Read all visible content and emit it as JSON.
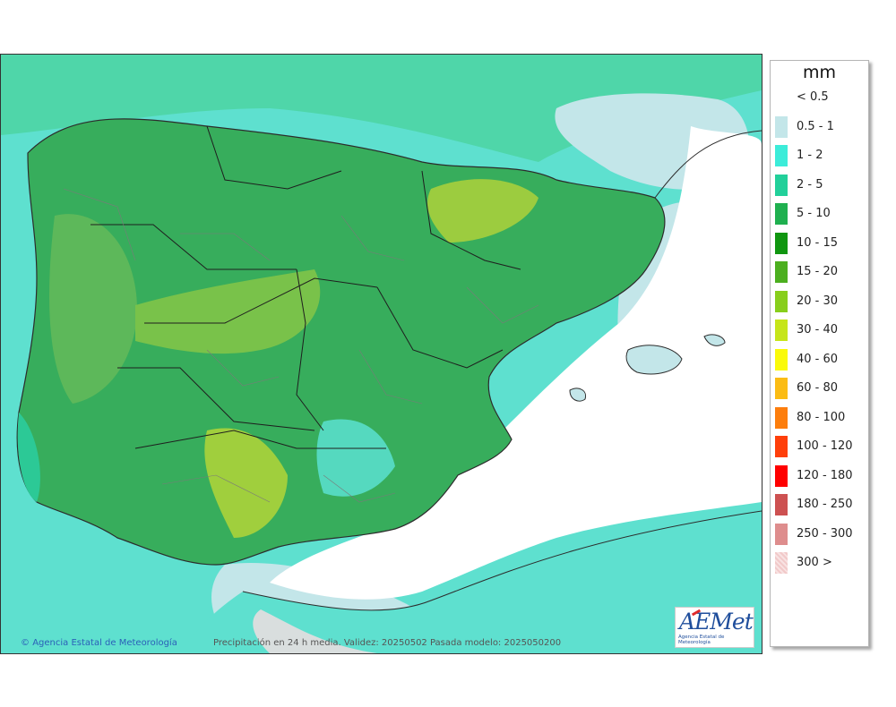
{
  "units": "mm",
  "credit": "Agencia Estatal de Meteorología",
  "caption": "Precipitación en 24 h media. Validez: 20250502 Pasada modelo: 2025050200",
  "logo": {
    "name": "AEMet",
    "subtitle": "Agencia Estatal de Meteorología"
  },
  "legend": [
    {
      "label": "< 0.5",
      "color": "#ffffff"
    },
    {
      "label": "0.5 - 1",
      "color": "#c3e6e9"
    },
    {
      "label": "1 - 2",
      "color": "#3cecd9"
    },
    {
      "label": "2 - 5",
      "color": "#22d09a"
    },
    {
      "label": "5 - 10",
      "color": "#1fb04f"
    },
    {
      "label": "10 - 15",
      "color": "#109610"
    },
    {
      "label": "15 - 20",
      "color": "#4caf1f"
    },
    {
      "label": "20 - 30",
      "color": "#88ce1c"
    },
    {
      "label": "30 - 40",
      "color": "#c6e51a"
    },
    {
      "label": "40 - 60",
      "color": "#fafa0a"
    },
    {
      "label": "60 - 80",
      "color": "#fbbc14"
    },
    {
      "label": "80 - 100",
      "color": "#fd7e0d"
    },
    {
      "label": "100 - 120",
      "color": "#ff3f0a"
    },
    {
      "label": "120 - 180",
      "color": "#ff0000"
    },
    {
      "label": "180 - 250",
      "color": "#cd5151"
    },
    {
      "label": "250 - 300",
      "color": "#de8d8d"
    },
    {
      "label": "300 >",
      "color": "#f1c9c9"
    }
  ]
}
